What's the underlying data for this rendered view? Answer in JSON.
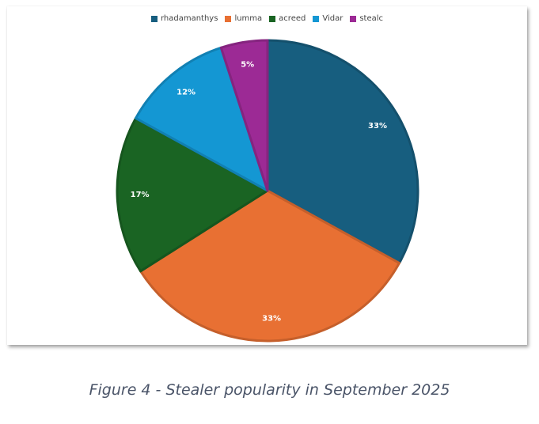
{
  "chart_data": {
    "type": "pie",
    "categories": [
      "rhadamanthys",
      "lumma",
      "acreed",
      "Vidar",
      "stealc"
    ],
    "values": [
      33,
      33,
      17,
      12,
      5
    ],
    "labels": [
      "33%",
      "33%",
      "17%",
      "12%",
      "5%"
    ],
    "colors": [
      "#175e7f",
      "#e87033",
      "#1a6423",
      "#1497d3",
      "#9c2a95"
    ],
    "legend_position": "top",
    "start_angle_deg": 0,
    "direction": "clockwise"
  },
  "caption": "Figure 4 - Stealer popularity in September 2025"
}
